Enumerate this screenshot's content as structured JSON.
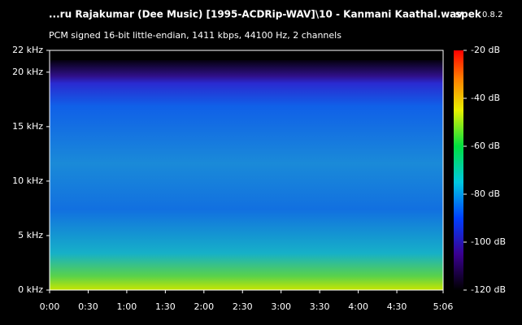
{
  "chart_data": {
    "type": "spectrogram",
    "title": "...ru Rajakumar (Dee Music) [1995-ACDRip-WAV]\\10 - Kanmani Kaathal.wav",
    "app_name": "spek",
    "app_version": "0.8.2",
    "subtitle": "PCM signed 16-bit little-endian, 1411 kbps, 44100 Hz, 2 channels",
    "xlim": [
      0,
      306
    ],
    "xticks": [
      {
        "value": 0,
        "label": "0:00"
      },
      {
        "value": 30,
        "label": "0:30"
      },
      {
        "value": 60,
        "label": "1:00"
      },
      {
        "value": 90,
        "label": "1:30"
      },
      {
        "value": 120,
        "label": "2:00"
      },
      {
        "value": 150,
        "label": "2:30"
      },
      {
        "value": 180,
        "label": "3:00"
      },
      {
        "value": 210,
        "label": "3:30"
      },
      {
        "value": 240,
        "label": "4:00"
      },
      {
        "value": 270,
        "label": "4:30"
      },
      {
        "value": 306,
        "label": "5:06"
      }
    ],
    "ylim": [
      0,
      22
    ],
    "yticks": [
      {
        "value": 0,
        "label": "0 kHz"
      },
      {
        "value": 5,
        "label": "5 kHz"
      },
      {
        "value": 10,
        "label": "10 kHz"
      },
      {
        "value": 15,
        "label": "15 kHz"
      },
      {
        "value": 20,
        "label": "20 kHz"
      },
      {
        "value": 22,
        "label": "22 kHz"
      }
    ],
    "colorbar_lim": [
      -120,
      -20
    ],
    "colorbar_ticks": [
      {
        "value": -20,
        "label": "-20 dB"
      },
      {
        "value": -40,
        "label": "-40 dB"
      },
      {
        "value": -60,
        "label": "-60 dB"
      },
      {
        "value": -80,
        "label": "-80 dB"
      },
      {
        "value": -100,
        "label": "-100 dB"
      },
      {
        "value": -120,
        "label": "-120 dB"
      }
    ]
  }
}
